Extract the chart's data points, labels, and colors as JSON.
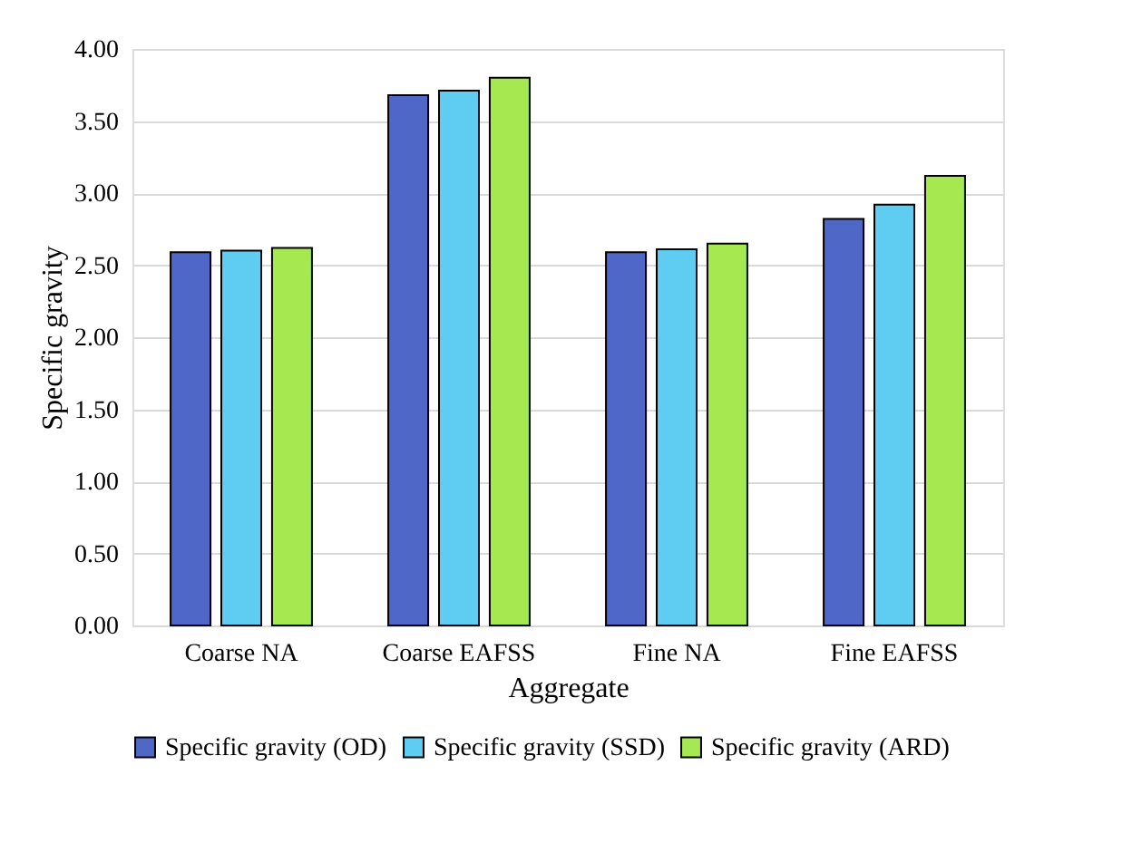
{
  "chart_data": {
    "type": "bar",
    "xlabel": "Aggregate",
    "ylabel": "Specific gravity",
    "categories": [
      "Coarse NA",
      "Coarse EAFSS",
      "Fine NA",
      "Fine EAFSS"
    ],
    "series": [
      {
        "name": "Specific gravity (OD)",
        "color": "#4f67c6",
        "values": [
          2.59,
          3.68,
          2.59,
          2.82
        ]
      },
      {
        "name": "Specific gravity (SSD)",
        "color": "#5fcdf2",
        "values": [
          2.6,
          3.71,
          2.61,
          2.92
        ]
      },
      {
        "name": "Specific gravity (ARD)",
        "color": "#a6e84f",
        "values": [
          2.62,
          3.8,
          2.65,
          3.12
        ]
      }
    ],
    "ylim": [
      0,
      4
    ],
    "yticks": [
      {
        "value": 0,
        "label": "0.00"
      },
      {
        "value": 0.5,
        "label": "0.50"
      },
      {
        "value": 1,
        "label": "1.00"
      },
      {
        "value": 1.5,
        "label": "1.50"
      },
      {
        "value": 2,
        "label": "2.00"
      },
      {
        "value": 2.5,
        "label": "2.50"
      },
      {
        "value": 3,
        "label": "3.00"
      },
      {
        "value": 3.5,
        "label": "3.50"
      },
      {
        "value": 4,
        "label": "4.00"
      }
    ],
    "grid": "y",
    "legend": "bottom"
  }
}
